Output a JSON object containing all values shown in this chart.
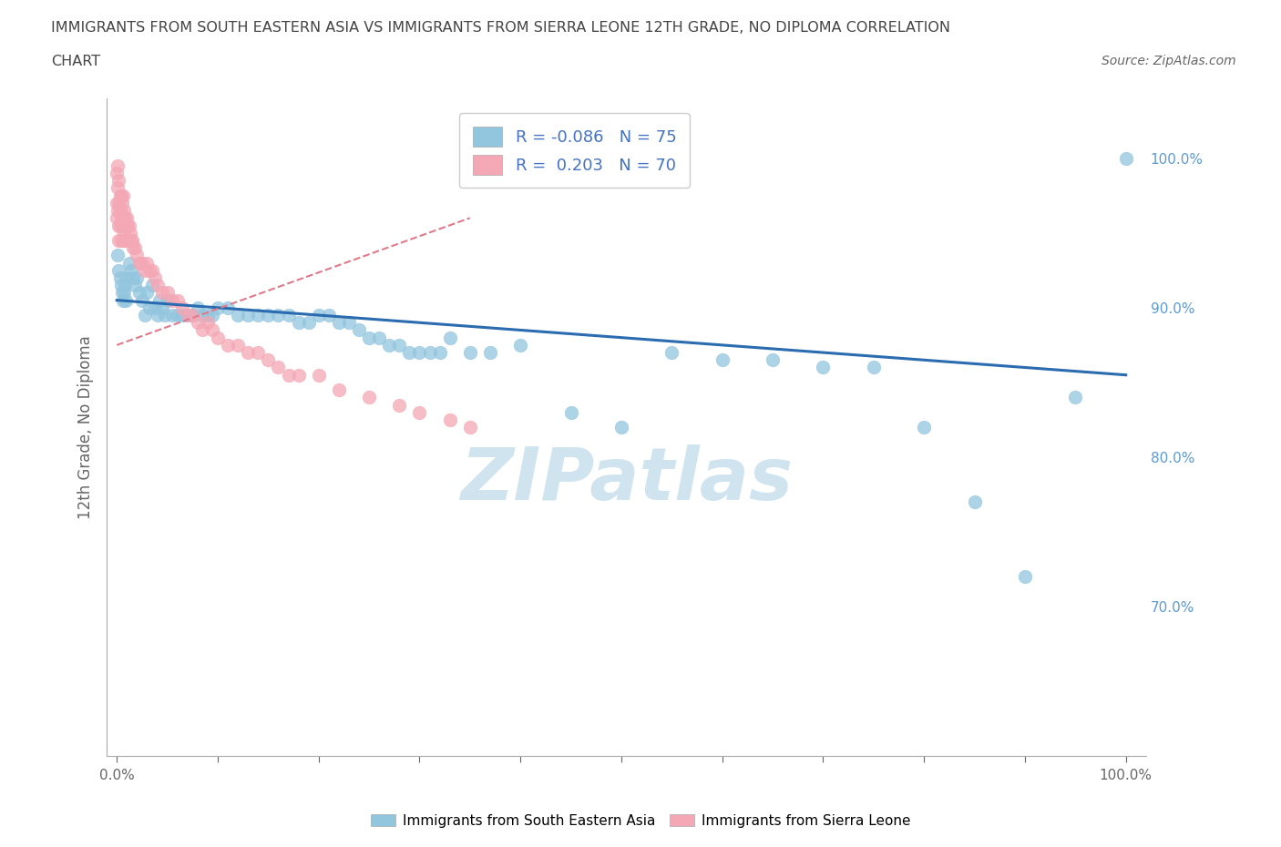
{
  "title_line1": "IMMIGRANTS FROM SOUTH EASTERN ASIA VS IMMIGRANTS FROM SIERRA LEONE 12TH GRADE, NO DIPLOMA CORRELATION",
  "title_line2": "CHART",
  "source_text": "Source: ZipAtlas.com",
  "ylabel": "12th Grade, No Diploma",
  "legend_blue_r": "-0.086",
  "legend_blue_n": "75",
  "legend_pink_r": "0.203",
  "legend_pink_n": "70",
  "legend_blue_label": "Immigrants from South Eastern Asia",
  "legend_pink_label": "Immigrants from Sierra Leone",
  "blue_color": "#92c5de",
  "pink_color": "#f4a7b5",
  "blue_line_color": "#2b6cb0",
  "pink_line_color": "#e07a8a",
  "watermark_color": "#d0e4f0",
  "background_color": "#ffffff",
  "grid_color": "#dddddd",
  "title_color": "#444444",
  "axis_label_color": "#666666",
  "right_tick_color": "#5b9bd5",
  "blue_scatter_x": [
    0.001,
    0.002,
    0.003,
    0.004,
    0.005,
    0.006,
    0.007,
    0.008,
    0.009,
    0.01,
    0.012,
    0.014,
    0.016,
    0.018,
    0.02,
    0.022,
    0.025,
    0.028,
    0.03,
    0.032,
    0.035,
    0.038,
    0.04,
    0.042,
    0.045,
    0.048,
    0.05,
    0.055,
    0.06,
    0.065,
    0.07,
    0.075,
    0.08,
    0.085,
    0.09,
    0.095,
    0.1,
    0.11,
    0.12,
    0.13,
    0.14,
    0.15,
    0.16,
    0.17,
    0.18,
    0.19,
    0.2,
    0.21,
    0.22,
    0.23,
    0.24,
    0.25,
    0.26,
    0.27,
    0.28,
    0.29,
    0.3,
    0.31,
    0.32,
    0.33,
    0.35,
    0.37,
    0.4,
    0.45,
    0.5,
    0.55,
    0.6,
    0.65,
    0.7,
    0.75,
    0.8,
    0.85,
    0.9,
    0.95,
    1.0
  ],
  "blue_scatter_y": [
    0.935,
    0.925,
    0.92,
    0.915,
    0.91,
    0.905,
    0.91,
    0.915,
    0.905,
    0.92,
    0.93,
    0.925,
    0.92,
    0.915,
    0.92,
    0.91,
    0.905,
    0.895,
    0.91,
    0.9,
    0.915,
    0.9,
    0.895,
    0.905,
    0.9,
    0.895,
    0.905,
    0.895,
    0.895,
    0.895,
    0.895,
    0.895,
    0.9,
    0.895,
    0.895,
    0.895,
    0.9,
    0.9,
    0.895,
    0.895,
    0.895,
    0.895,
    0.895,
    0.895,
    0.89,
    0.89,
    0.895,
    0.895,
    0.89,
    0.89,
    0.885,
    0.88,
    0.88,
    0.875,
    0.875,
    0.87,
    0.87,
    0.87,
    0.87,
    0.88,
    0.87,
    0.87,
    0.875,
    0.83,
    0.82,
    0.87,
    0.865,
    0.865,
    0.86,
    0.86,
    0.82,
    0.77,
    0.72,
    0.84,
    1.0
  ],
  "pink_scatter_x": [
    0.0,
    0.0,
    0.0,
    0.001,
    0.001,
    0.001,
    0.002,
    0.002,
    0.002,
    0.002,
    0.003,
    0.003,
    0.003,
    0.004,
    0.004,
    0.004,
    0.005,
    0.005,
    0.006,
    0.006,
    0.006,
    0.007,
    0.007,
    0.008,
    0.008,
    0.009,
    0.01,
    0.011,
    0.012,
    0.013,
    0.014,
    0.015,
    0.016,
    0.018,
    0.02,
    0.022,
    0.025,
    0.028,
    0.03,
    0.032,
    0.035,
    0.038,
    0.04,
    0.045,
    0.05,
    0.055,
    0.06,
    0.065,
    0.07,
    0.075,
    0.08,
    0.085,
    0.09,
    0.095,
    0.1,
    0.11,
    0.12,
    0.13,
    0.14,
    0.15,
    0.16,
    0.17,
    0.18,
    0.2,
    0.22,
    0.25,
    0.28,
    0.3,
    0.33,
    0.35
  ],
  "pink_scatter_y": [
    0.99,
    0.97,
    0.96,
    0.995,
    0.98,
    0.965,
    0.985,
    0.97,
    0.955,
    0.945,
    0.975,
    0.965,
    0.955,
    0.975,
    0.96,
    0.945,
    0.97,
    0.955,
    0.975,
    0.96,
    0.945,
    0.965,
    0.95,
    0.96,
    0.945,
    0.955,
    0.96,
    0.955,
    0.955,
    0.95,
    0.945,
    0.945,
    0.94,
    0.94,
    0.935,
    0.93,
    0.93,
    0.925,
    0.93,
    0.925,
    0.925,
    0.92,
    0.915,
    0.91,
    0.91,
    0.905,
    0.905,
    0.9,
    0.895,
    0.895,
    0.89,
    0.885,
    0.89,
    0.885,
    0.88,
    0.875,
    0.875,
    0.87,
    0.87,
    0.865,
    0.86,
    0.855,
    0.855,
    0.855,
    0.845,
    0.84,
    0.835,
    0.83,
    0.825,
    0.82
  ],
  "blue_trend_x": [
    0.0,
    1.0
  ],
  "blue_trend_y": [
    0.905,
    0.855
  ],
  "pink_trend_x": [
    0.0,
    0.35
  ],
  "pink_trend_y": [
    0.875,
    0.96
  ],
  "xlim": [
    -0.01,
    1.02
  ],
  "ylim": [
    0.6,
    1.04
  ],
  "right_yticks": [
    1.0,
    0.9,
    0.8,
    0.7
  ],
  "right_yticklabels": [
    "100.0%",
    "90.0%",
    "80.0%",
    "70.0%"
  ],
  "xticks": [
    0.0,
    0.1,
    0.2,
    0.3,
    0.4,
    0.5,
    0.6,
    0.7,
    0.8,
    0.9,
    1.0
  ],
  "xticklabels": [
    "0.0%",
    "",
    "",
    "",
    "",
    "",
    "",
    "",
    "",
    "",
    "100.0%"
  ]
}
